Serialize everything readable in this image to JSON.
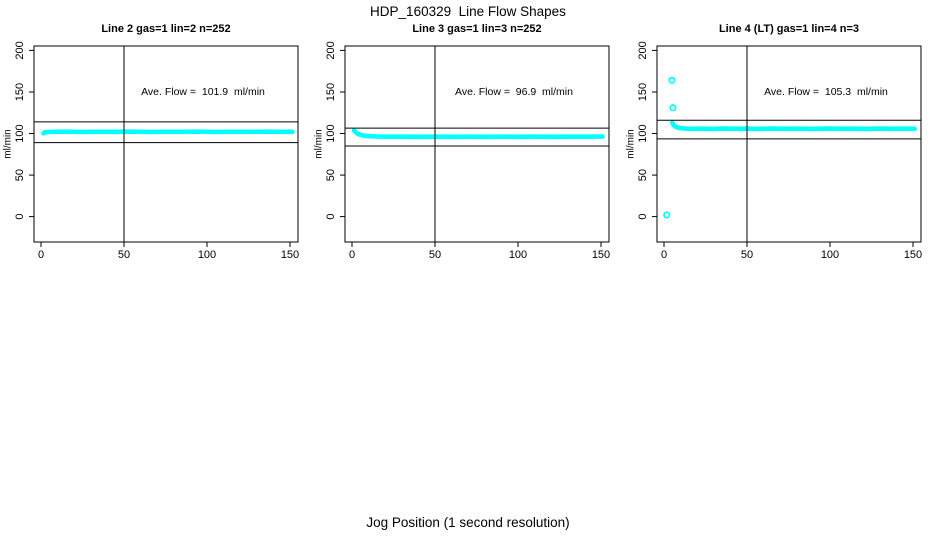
{
  "page": {
    "title": "HDP_160329  Line Flow Shapes",
    "xlabel": "Jog Position (1 second resolution)",
    "background_color": "#ffffff",
    "axis_color": "#000000"
  },
  "chart_data": [
    {
      "type": "scatter",
      "title": "Line 2 gas=1 lin=2 n=252",
      "annotation": "Ave. Flow =  101.9  ml/min",
      "ylabel": "ml/min",
      "point_color": "#00ffff",
      "x_ticks": [
        0,
        50,
        100,
        150
      ],
      "y_ticks": [
        0,
        50,
        100,
        150,
        200
      ],
      "xlim": [
        -5,
        155
      ],
      "ylim": [
        -31,
        205
      ],
      "grid": false,
      "vline_x": 50,
      "hlines": [
        114,
        89
      ],
      "series": [
        {
          "name": "flow trace",
          "points": [
            [
              1.5,
              100.2
            ],
            [
              2.5,
              101.4
            ],
            [
              4,
              101.8
            ],
            [
              8,
              102
            ],
            [
              15,
              102.2
            ],
            [
              25,
              101.9
            ],
            [
              35,
              102.1
            ],
            [
              45,
              102
            ],
            [
              55,
              102.2
            ],
            [
              65,
              101.9
            ],
            [
              75,
              102.1
            ],
            [
              85,
              102
            ],
            [
              95,
              102.2
            ],
            [
              105,
              101.9
            ],
            [
              115,
              102.1
            ],
            [
              125,
              102
            ],
            [
              135,
              102.2
            ],
            [
              145,
              102
            ],
            [
              151.5,
              102.1
            ]
          ]
        }
      ],
      "outliers": []
    },
    {
      "type": "scatter",
      "title": "Line 3 gas=1 lin=3 n=252",
      "annotation": "Ave. Flow =  96.9  ml/min",
      "ylabel": "ml/min",
      "point_color": "#00ffff",
      "x_ticks": [
        0,
        50,
        100,
        150
      ],
      "y_ticks": [
        0,
        50,
        100,
        150,
        200
      ],
      "xlim": [
        -5,
        155
      ],
      "ylim": [
        -31,
        205
      ],
      "grid": false,
      "vline_x": 50,
      "hlines": [
        106.5,
        85
      ],
      "series": [
        {
          "name": "flow trace",
          "points": [
            [
              1.2,
              103.8
            ],
            [
              2,
              102.2
            ],
            [
              3,
              100.4
            ],
            [
              4.5,
              98.8
            ],
            [
              6,
              97.9
            ],
            [
              8,
              97.2
            ],
            [
              11,
              96.7
            ],
            [
              15,
              96.4
            ],
            [
              20,
              96.2
            ],
            [
              30,
              96.1
            ],
            [
              40,
              96
            ],
            [
              50,
              96.2
            ],
            [
              60,
              96
            ],
            [
              70,
              96.1
            ],
            [
              80,
              96
            ],
            [
              90,
              96.2
            ],
            [
              100,
              96
            ],
            [
              110,
              96.1
            ],
            [
              120,
              96
            ],
            [
              130,
              96.2
            ],
            [
              140,
              96.1
            ],
            [
              151,
              96.3
            ]
          ]
        }
      ],
      "outliers": []
    },
    {
      "type": "scatter",
      "title": "Line 4 (LT) gas=1 lin=4 n=3",
      "annotation": "Ave. Flow =  105.3  ml/min",
      "ylabel": "ml/min",
      "point_color": "#00ffff",
      "x_ticks": [
        0,
        50,
        100,
        150
      ],
      "y_ticks": [
        0,
        50,
        100,
        150,
        200
      ],
      "xlim": [
        -5,
        155
      ],
      "ylim": [
        -31,
        205
      ],
      "grid": false,
      "vline_x": 50,
      "hlines": [
        116,
        93.5
      ],
      "series": [
        {
          "name": "flow trace",
          "points": [
            [
              5,
              113
            ],
            [
              5.8,
              110.4
            ],
            [
              6.8,
              108.6
            ],
            [
              8,
              107.4
            ],
            [
              9.5,
              106.6
            ],
            [
              11.5,
              106.1
            ],
            [
              14,
              105.8
            ],
            [
              18,
              105.6
            ],
            [
              23,
              105.8
            ],
            [
              29,
              105.5
            ],
            [
              36,
              105.9
            ],
            [
              43,
              105.6
            ],
            [
              50,
              105.8
            ],
            [
              58,
              105.5
            ],
            [
              66,
              105.9
            ],
            [
              74,
              105.6
            ],
            [
              82,
              105.8
            ],
            [
              90,
              105.5
            ],
            [
              98,
              105.9
            ],
            [
              106,
              105.6
            ],
            [
              114,
              105.8
            ],
            [
              122,
              105.5
            ],
            [
              130,
              105.9
            ],
            [
              138,
              105.6
            ],
            [
              145,
              105.8
            ],
            [
              151,
              105.7
            ]
          ]
        }
      ],
      "outliers": [
        [
          4.8,
          164
        ],
        [
          5.4,
          131
        ],
        [
          1.6,
          2
        ]
      ]
    }
  ]
}
